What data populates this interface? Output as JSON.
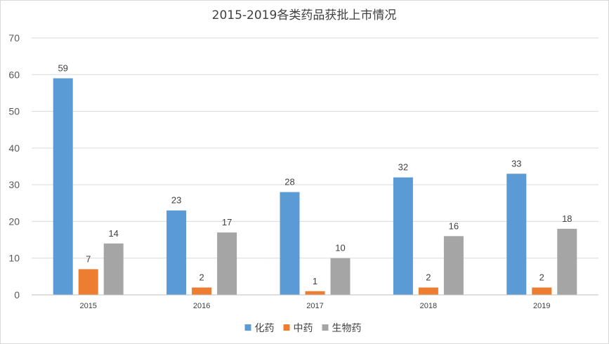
{
  "chart_data": {
    "type": "bar",
    "title": "2015-2019各类药品获批上市情况",
    "categories": [
      "2015",
      "2016",
      "2017",
      "2018",
      "2019"
    ],
    "series": [
      {
        "name": "化药",
        "color": "#5B9BD5",
        "values": [
          59,
          23,
          28,
          32,
          33
        ]
      },
      {
        "name": "中药",
        "color": "#ED7D31",
        "values": [
          7,
          2,
          1,
          2,
          2
        ]
      },
      {
        "name": "生物药",
        "color": "#A5A5A5",
        "values": [
          14,
          17,
          10,
          16,
          18
        ]
      }
    ],
    "ylim": [
      0,
      70
    ],
    "yticks": [
      0,
      10,
      20,
      30,
      40,
      50,
      60,
      70
    ],
    "grid": true,
    "data_labels": true,
    "legend_position": "bottom"
  }
}
